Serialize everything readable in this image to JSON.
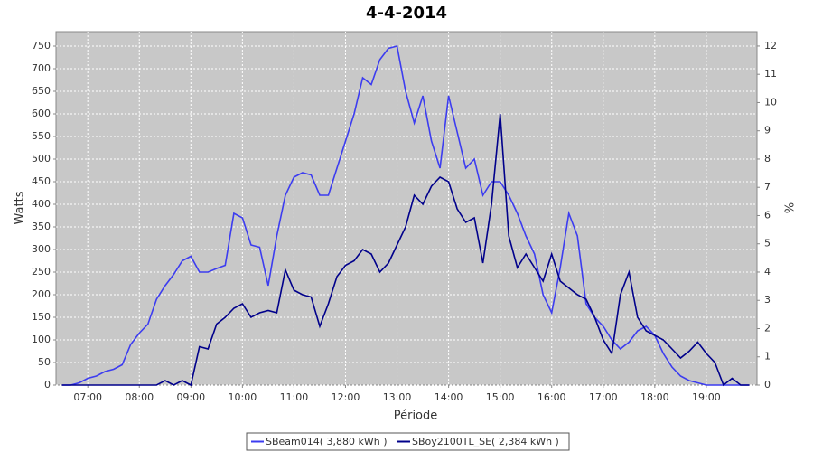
{
  "chart_data": {
    "type": "line",
    "title": "4-4-2014",
    "x_label": "Période",
    "y_label": "Watts",
    "y2_label": "%",
    "x": [
      "06:30",
      "06:40",
      "06:50",
      "07:00",
      "07:10",
      "07:20",
      "07:30",
      "07:40",
      "07:50",
      "08:00",
      "08:10",
      "08:20",
      "08:30",
      "08:40",
      "08:50",
      "09:00",
      "09:10",
      "09:20",
      "09:30",
      "09:40",
      "09:50",
      "10:00",
      "10:10",
      "10:20",
      "10:30",
      "10:40",
      "10:50",
      "11:00",
      "11:10",
      "11:20",
      "11:30",
      "11:40",
      "11:50",
      "12:00",
      "12:10",
      "12:20",
      "12:30",
      "12:40",
      "12:50",
      "13:00",
      "13:10",
      "13:20",
      "13:30",
      "13:40",
      "13:50",
      "14:00",
      "14:10",
      "14:20",
      "14:30",
      "14:40",
      "14:50",
      "15:00",
      "15:10",
      "15:20",
      "15:30",
      "15:40",
      "15:50",
      "16:00",
      "16:10",
      "16:20",
      "16:30",
      "16:40",
      "16:50",
      "17:00",
      "17:10",
      "17:20",
      "17:30",
      "17:40",
      "17:50",
      "18:00",
      "18:10",
      "18:20",
      "18:30",
      "18:40",
      "18:50",
      "19:00",
      "19:10",
      "19:20",
      "19:30",
      "19:40",
      "19:50"
    ],
    "series": [
      {
        "name": "SBeam014( 3,880 kWh )",
        "color": "#3c3cf0",
        "values": [
          0,
          0,
          5,
          15,
          20,
          30,
          35,
          45,
          90,
          115,
          135,
          190,
          220,
          245,
          275,
          285,
          250,
          250,
          258,
          265,
          380,
          370,
          310,
          305,
          220,
          330,
          420,
          460,
          470,
          465,
          420,
          420,
          480,
          540,
          600,
          680,
          665,
          720,
          745,
          750,
          650,
          580,
          640,
          540,
          480,
          640,
          560,
          480,
          500,
          420,
          450,
          450,
          420,
          380,
          330,
          290,
          200,
          160,
          260,
          380,
          330,
          180,
          150,
          130,
          100,
          80,
          95,
          120,
          130,
          110,
          70,
          40,
          20,
          10,
          5,
          0,
          0,
          0,
          0,
          0,
          0
        ]
      },
      {
        "name": "SBoy2100TL_SE( 2,384 kWh )",
        "color": "#00008b",
        "values": [
          0,
          0,
          0,
          0,
          0,
          0,
          0,
          0,
          0,
          0,
          0,
          0,
          10,
          0,
          10,
          0,
          85,
          80,
          135,
          150,
          170,
          180,
          150,
          160,
          165,
          160,
          255,
          210,
          200,
          195,
          130,
          180,
          240,
          265,
          275,
          300,
          290,
          250,
          270,
          310,
          350,
          420,
          400,
          440,
          460,
          450,
          390,
          360,
          370,
          270,
          400,
          600,
          330,
          260,
          290,
          260,
          230,
          290,
          230,
          215,
          200,
          190,
          150,
          100,
          70,
          200,
          250,
          150,
          120,
          110,
          100,
          80,
          60,
          75,
          95,
          70,
          50,
          0,
          15,
          0,
          0
        ]
      }
    ],
    "xlim": [
      "06:23",
      "19:59"
    ],
    "xticks": [
      "07:00",
      "08:00",
      "09:00",
      "10:00",
      "11:00",
      "12:00",
      "13:00",
      "14:00",
      "15:00",
      "16:00",
      "17:00",
      "18:00",
      "19:00"
    ],
    "ylim": [
      0,
      782
    ],
    "yticks": [
      0,
      50,
      100,
      150,
      200,
      250,
      300,
      350,
      400,
      450,
      500,
      550,
      600,
      650,
      700,
      750
    ],
    "y2lim": [
      0,
      12.51
    ],
    "y2ticks": [
      0,
      1,
      2,
      3,
      4,
      5,
      6,
      7,
      8,
      9,
      10,
      11,
      12
    ],
    "grid": true,
    "plot_background": "#c8c8c8"
  }
}
